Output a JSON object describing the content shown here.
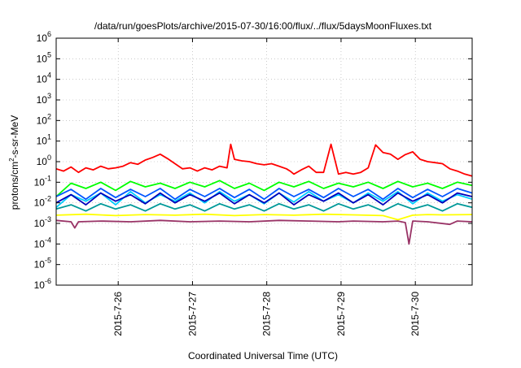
{
  "chart_data": {
    "type": "line",
    "title": "/data/run/goesPlots/archive/2015-07-30/16:00/flux/../flux/5daysMoonFluxes.txt",
    "xlabel": "Coordinated Universal Time (UTC)",
    "ylabel": {
      "base": "protons/cm",
      "sup": "2",
      "rest": "-s-sr-MeV"
    },
    "yscale": "log",
    "ylim": [
      1e-06,
      1000000.0
    ],
    "xlim": [
      "2015-07-25 02:20",
      "2015-07-30 16:20"
    ],
    "grid": true,
    "legend": "none",
    "x_ticks": [
      {
        "label": "2015-7-26",
        "t": 0.835
      },
      {
        "label": "2015-7-27",
        "t": 1.835
      },
      {
        "label": "2015-7-28",
        "t": 2.835
      },
      {
        "label": "2015-7-29",
        "t": 3.835
      },
      {
        "label": "2015-7-30",
        "t": 4.835
      }
    ],
    "y_ticks": [
      {
        "label": "10",
        "exp": "6",
        "v": 1000000.0
      },
      {
        "label": "10",
        "exp": "5",
        "v": 100000.0
      },
      {
        "label": "10",
        "exp": "4",
        "v": 10000.0
      },
      {
        "label": "10",
        "exp": "3",
        "v": 1000.0
      },
      {
        "label": "10",
        "exp": "2",
        "v": 100.0
      },
      {
        "label": "10",
        "exp": "1",
        "v": 10.0
      },
      {
        "label": "10",
        "exp": "0",
        "v": 1
      },
      {
        "label": "10",
        "exp": "-1",
        "v": 0.1
      },
      {
        "label": "10",
        "exp": "-2",
        "v": 0.01
      },
      {
        "label": "10",
        "exp": "-3",
        "v": 0.001
      },
      {
        "label": "10",
        "exp": "-4",
        "v": 0.0001
      },
      {
        "label": "10",
        "exp": "-5",
        "v": 1e-05
      },
      {
        "label": "10",
        "exp": "-6",
        "v": 1e-06
      }
    ],
    "series": [
      {
        "color": "#ff0000",
        "x": [
          0.0,
          0.1,
          0.2,
          0.3,
          0.4,
          0.5,
          0.6,
          0.7,
          0.8,
          0.9,
          1.0,
          1.1,
          1.2,
          1.3,
          1.4,
          1.5,
          1.6,
          1.7,
          1.8,
          1.9,
          2.0,
          2.1,
          2.2,
          2.3,
          2.35,
          2.4,
          2.5,
          2.6,
          2.7,
          2.8,
          2.9,
          3.0,
          3.1,
          3.15,
          3.2,
          3.3,
          3.4,
          3.5,
          3.6,
          3.7,
          3.8,
          3.9,
          4.0,
          4.1,
          4.2,
          4.3,
          4.4,
          4.5,
          4.6,
          4.7,
          4.8,
          4.9,
          5.0,
          5.1,
          5.2,
          5.3,
          5.4,
          5.5,
          5.6
        ],
        "y": [
          0.45,
          0.35,
          0.55,
          0.3,
          0.5,
          0.4,
          0.6,
          0.45,
          0.5,
          0.6,
          0.9,
          0.75,
          1.2,
          1.6,
          2.3,
          1.4,
          0.8,
          0.45,
          0.5,
          0.35,
          0.5,
          0.4,
          0.6,
          0.5,
          7.0,
          1.3,
          1.1,
          1.0,
          0.8,
          0.7,
          0.8,
          0.6,
          0.45,
          0.35,
          0.25,
          0.4,
          0.6,
          0.3,
          0.3,
          7.0,
          0.25,
          0.3,
          0.25,
          0.3,
          0.5,
          6.5,
          2.8,
          2.3,
          1.3,
          2.2,
          3.0,
          1.3,
          1.0,
          0.9,
          0.8,
          0.45,
          0.35,
          0.25,
          0.2
        ]
      },
      {
        "color": "#00ff00",
        "x": [
          0.0,
          0.2,
          0.4,
          0.6,
          0.8,
          1.0,
          1.2,
          1.4,
          1.6,
          1.8,
          2.0,
          2.2,
          2.4,
          2.6,
          2.8,
          3.0,
          3.2,
          3.4,
          3.6,
          3.8,
          4.0,
          4.2,
          4.4,
          4.6,
          4.8,
          5.0,
          5.2,
          5.4,
          5.6
        ],
        "y": [
          0.02,
          0.09,
          0.05,
          0.1,
          0.04,
          0.11,
          0.06,
          0.09,
          0.05,
          0.1,
          0.06,
          0.12,
          0.05,
          0.09,
          0.04,
          0.1,
          0.06,
          0.11,
          0.05,
          0.09,
          0.06,
          0.1,
          0.05,
          0.11,
          0.06,
          0.09,
          0.05,
          0.1,
          0.07
        ]
      },
      {
        "color": "#00ccff",
        "x": [
          0.0,
          0.2,
          0.4,
          0.6,
          0.8,
          1.0,
          1.2,
          1.4,
          1.6,
          1.8,
          2.0,
          2.2,
          2.4,
          2.6,
          2.8,
          3.0,
          3.2,
          3.4,
          3.6,
          3.8,
          4.0,
          4.2,
          4.4,
          4.6,
          4.8,
          5.0,
          5.2,
          5.4,
          5.6
        ],
        "y": [
          0.006,
          0.025,
          0.012,
          0.03,
          0.008,
          0.035,
          0.01,
          0.025,
          0.012,
          0.03,
          0.01,
          0.035,
          0.012,
          0.025,
          0.009,
          0.03,
          0.011,
          0.035,
          0.012,
          0.025,
          0.01,
          0.03,
          0.012,
          0.035,
          0.009,
          0.03,
          0.012,
          0.025,
          0.015
        ]
      },
      {
        "color": "#0055ff",
        "x": [
          0.0,
          0.2,
          0.4,
          0.6,
          0.8,
          1.0,
          1.2,
          1.4,
          1.6,
          1.8,
          2.0,
          2.2,
          2.4,
          2.6,
          2.8,
          3.0,
          3.2,
          3.4,
          3.6,
          3.8,
          4.0,
          4.2,
          4.4,
          4.6,
          4.8,
          5.0,
          5.2,
          5.4,
          5.6
        ],
        "y": [
          0.02,
          0.045,
          0.015,
          0.05,
          0.018,
          0.045,
          0.02,
          0.05,
          0.015,
          0.045,
          0.02,
          0.05,
          0.018,
          0.045,
          0.015,
          0.05,
          0.02,
          0.045,
          0.018,
          0.05,
          0.02,
          0.045,
          0.015,
          0.05,
          0.018,
          0.045,
          0.02,
          0.05,
          0.03
        ]
      },
      {
        "color": "#0000bb",
        "x": [
          0.0,
          0.2,
          0.4,
          0.6,
          0.8,
          1.0,
          1.2,
          1.4,
          1.6,
          1.8,
          2.0,
          2.2,
          2.4,
          2.6,
          2.8,
          3.0,
          3.2,
          3.4,
          3.6,
          3.8,
          4.0,
          4.2,
          4.4,
          4.6,
          4.8,
          5.0,
          5.2,
          5.4,
          5.6
        ],
        "y": [
          0.01,
          0.025,
          0.008,
          0.03,
          0.012,
          0.025,
          0.009,
          0.03,
          0.01,
          0.025,
          0.012,
          0.03,
          0.009,
          0.025,
          0.01,
          0.03,
          0.008,
          0.025,
          0.012,
          0.03,
          0.01,
          0.025,
          0.008,
          0.03,
          0.012,
          0.025,
          0.01,
          0.03,
          0.02
        ]
      },
      {
        "color": "#009999",
        "x": [
          0.0,
          0.2,
          0.4,
          0.6,
          0.8,
          1.0,
          1.2,
          1.4,
          1.6,
          1.8,
          2.0,
          2.2,
          2.4,
          2.6,
          2.8,
          3.0,
          3.2,
          3.4,
          3.6,
          3.8,
          4.0,
          4.2,
          4.4,
          4.6,
          4.8,
          5.0,
          5.2,
          5.4,
          5.6
        ],
        "y": [
          0.005,
          0.008,
          0.004,
          0.009,
          0.005,
          0.008,
          0.004,
          0.009,
          0.005,
          0.008,
          0.004,
          0.009,
          0.005,
          0.008,
          0.004,
          0.009,
          0.005,
          0.008,
          0.004,
          0.009,
          0.005,
          0.008,
          0.004,
          0.009,
          0.005,
          0.008,
          0.004,
          0.009,
          0.006
        ]
      },
      {
        "color": "#ffff00",
        "x": [
          0.0,
          0.4,
          0.8,
          1.2,
          1.6,
          2.0,
          2.4,
          2.8,
          3.2,
          3.6,
          4.0,
          4.4,
          4.6,
          4.8,
          5.0,
          5.2,
          5.6
        ],
        "y": [
          0.0025,
          0.0028,
          0.0024,
          0.0027,
          0.0025,
          0.0028,
          0.0024,
          0.0027,
          0.0025,
          0.0028,
          0.0026,
          0.0024,
          0.0015,
          0.0025,
          0.0027,
          0.0026,
          0.0027
        ]
      },
      {
        "color": "#993366",
        "x": [
          0.0,
          0.2,
          0.25,
          0.3,
          0.6,
          1.0,
          1.4,
          1.8,
          2.2,
          2.6,
          3.0,
          3.4,
          3.8,
          4.0,
          4.4,
          4.6,
          4.7,
          4.75,
          4.8,
          5.0,
          5.3,
          5.4,
          5.6
        ],
        "y": [
          0.0014,
          0.0012,
          0.0006,
          0.0012,
          0.0013,
          0.0012,
          0.0014,
          0.0012,
          0.0013,
          0.0012,
          0.0014,
          0.0013,
          0.0012,
          0.0013,
          0.0012,
          0.0013,
          0.0011,
          0.0001,
          0.0013,
          0.0012,
          0.0009,
          0.0013,
          0.0012
        ]
      }
    ]
  }
}
